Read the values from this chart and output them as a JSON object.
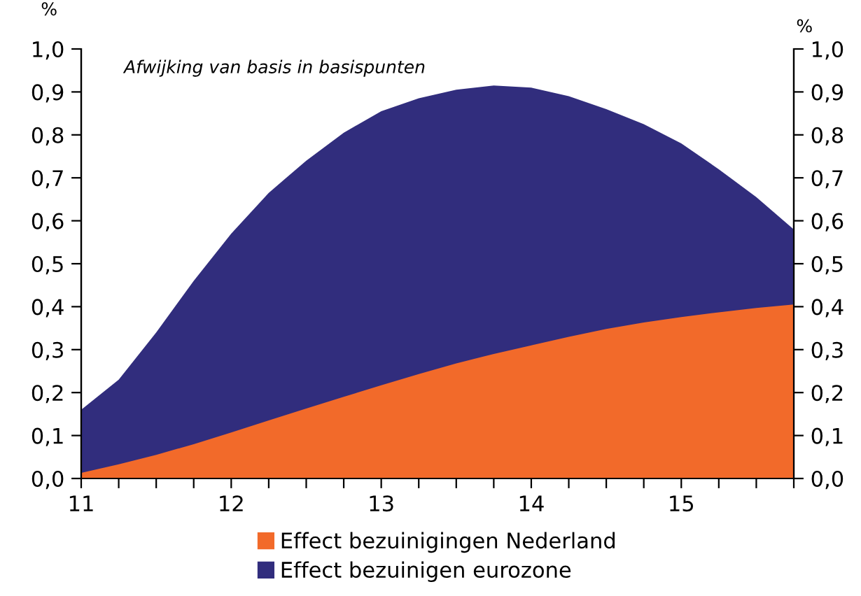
{
  "chart_data": {
    "type": "area",
    "x": [
      11,
      11.25,
      11.5,
      11.75,
      12,
      12.25,
      12.5,
      12.75,
      13,
      13.25,
      13.5,
      13.75,
      14,
      14.25,
      14.5,
      14.75,
      15,
      15.25,
      15.5,
      15.75
    ],
    "series": [
      {
        "name": "Effect bezuinigingen Nederland",
        "color": "#f26a2a",
        "values": [
          0.013,
          0.033,
          0.055,
          0.08,
          0.107,
          0.135,
          0.163,
          0.19,
          0.217,
          0.243,
          0.268,
          0.29,
          0.31,
          0.33,
          0.348,
          0.363,
          0.376,
          0.387,
          0.397,
          0.405
        ]
      },
      {
        "name": "Effect bezuinigen eurozone",
        "color": "#312d7d",
        "values": [
          0.16,
          0.23,
          0.34,
          0.46,
          0.57,
          0.665,
          0.74,
          0.805,
          0.855,
          0.885,
          0.905,
          0.915,
          0.91,
          0.89,
          0.86,
          0.825,
          0.78,
          0.72,
          0.655,
          0.58
        ]
      }
    ],
    "ylabel": "%",
    "y2label": "%",
    "annotations": [
      "Afwijking van basis in basispunten"
    ],
    "xlim": [
      11,
      15.75
    ],
    "xticks": [
      11,
      {
        "value": 11.25,
        "label": null
      },
      {
        "value": 11.5,
        "label": null
      },
      {
        "value": 11.75,
        "label": null
      },
      12,
      {
        "value": 12.25,
        "label": null
      },
      {
        "value": 12.5,
        "label": null
      },
      {
        "value": 12.75,
        "label": null
      },
      13,
      {
        "value": 13.25,
        "label": null
      },
      {
        "value": 13.5,
        "label": null
      },
      {
        "value": 13.75,
        "label": null
      },
      14,
      {
        "value": 14.25,
        "label": null
      },
      {
        "value": 14.5,
        "label": null
      },
      {
        "value": 14.75,
        "label": null
      },
      15,
      {
        "value": 15.25,
        "label": null
      },
      {
        "value": 15.5,
        "label": null
      },
      {
        "value": 15.75,
        "label": null
      }
    ],
    "ylim": [
      0,
      1
    ],
    "yticks": [
      {
        "value": 0,
        "label": "0,0"
      },
      {
        "value": 0.1,
        "label": "0,1"
      },
      {
        "value": 0.2,
        "label": "0,2"
      },
      {
        "value": 0.3,
        "label": "0,3"
      },
      {
        "value": 0.4,
        "label": "0,4"
      },
      {
        "value": 0.5,
        "label": "0,5"
      },
      {
        "value": 0.6,
        "label": "0,6"
      },
      {
        "value": 0.7,
        "label": "0,7"
      },
      {
        "value": 0.8,
        "label": "0,8"
      },
      {
        "value": 0.9,
        "label": "0,9"
      },
      {
        "value": 1,
        "label": "1,0"
      }
    ],
    "y2lim": [
      0,
      1
    ],
    "y2ticks": [
      {
        "value": 0,
        "label": "0,0"
      },
      {
        "value": 0.1,
        "label": "0,1"
      },
      {
        "value": 0.2,
        "label": "0,2"
      },
      {
        "value": 0.3,
        "label": "0,3"
      },
      {
        "value": 0.4,
        "label": "0,4"
      },
      {
        "value": 0.5,
        "label": "0,5"
      },
      {
        "value": 0.6,
        "label": "0,6"
      },
      {
        "value": 0.7,
        "label": "0,7"
      },
      {
        "value": 0.8,
        "label": "0,8"
      },
      {
        "value": 0.9,
        "label": "0,9"
      },
      {
        "value": 1,
        "label": "1,0"
      }
    ],
    "grid": false,
    "legend": "bottom"
  }
}
